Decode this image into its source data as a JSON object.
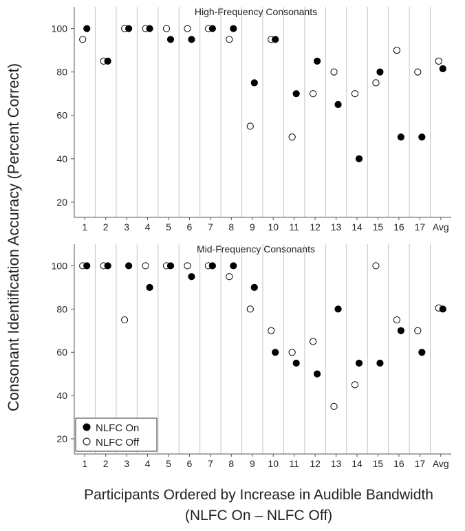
{
  "figure": {
    "ylabel": "Consonant Identification Accuracy (Percent Correct)",
    "xlabel_line1": "Participants Ordered by Increase in Audible Bandwidth",
    "xlabel_line2": "(NLFC On – NLFC Off)"
  },
  "legend": {
    "position": "bottom-left of lower panel",
    "entries": [
      {
        "label": "NLFC On",
        "marker": "filled-circle",
        "color": "#000000"
      },
      {
        "label": "NLFC Off",
        "marker": "open-circle",
        "color": "#000000"
      }
    ]
  },
  "chart_data": [
    {
      "type": "scatter",
      "title": "High-Frequency Consonants",
      "categories": [
        "1",
        "2",
        "3",
        "4",
        "5",
        "6",
        "7",
        "8",
        "9",
        "10",
        "11",
        "12",
        "13",
        "14",
        "15",
        "16",
        "17",
        "Avg"
      ],
      "ylim": [
        13,
        110
      ],
      "yticks": [
        20,
        40,
        60,
        80,
        100
      ],
      "grid": "vertical separators between participants",
      "series": [
        {
          "name": "NLFC On",
          "values": [
            100,
            85,
            100,
            100,
            95,
            95,
            100,
            100,
            75,
            95,
            70,
            85,
            65,
            40,
            80,
            50,
            50,
            81.5
          ]
        },
        {
          "name": "NLFC Off",
          "values": [
            95,
            85,
            100,
            100,
            100,
            100,
            100,
            95,
            55,
            95,
            50,
            70,
            80,
            70,
            75,
            90,
            80,
            85
          ]
        }
      ]
    },
    {
      "type": "scatter",
      "title": "Mid-Frequency Consonants",
      "categories": [
        "1",
        "2",
        "3",
        "4",
        "5",
        "6",
        "7",
        "8",
        "9",
        "10",
        "11",
        "12",
        "13",
        "14",
        "15",
        "16",
        "17",
        "Avg"
      ],
      "ylim": [
        13,
        110
      ],
      "yticks": [
        20,
        40,
        60,
        80,
        100
      ],
      "grid": "vertical separators between participants",
      "series": [
        {
          "name": "NLFC On",
          "values": [
            100,
            100,
            100,
            90,
            100,
            95,
            100,
            100,
            90,
            60,
            55,
            50,
            80,
            55,
            55,
            70,
            60,
            80
          ]
        },
        {
          "name": "NLFC Off",
          "values": [
            100,
            100,
            75,
            100,
            100,
            100,
            100,
            95,
            80,
            70,
            60,
            65,
            35,
            45,
            100,
            75,
            70,
            80.5
          ]
        }
      ]
    }
  ]
}
